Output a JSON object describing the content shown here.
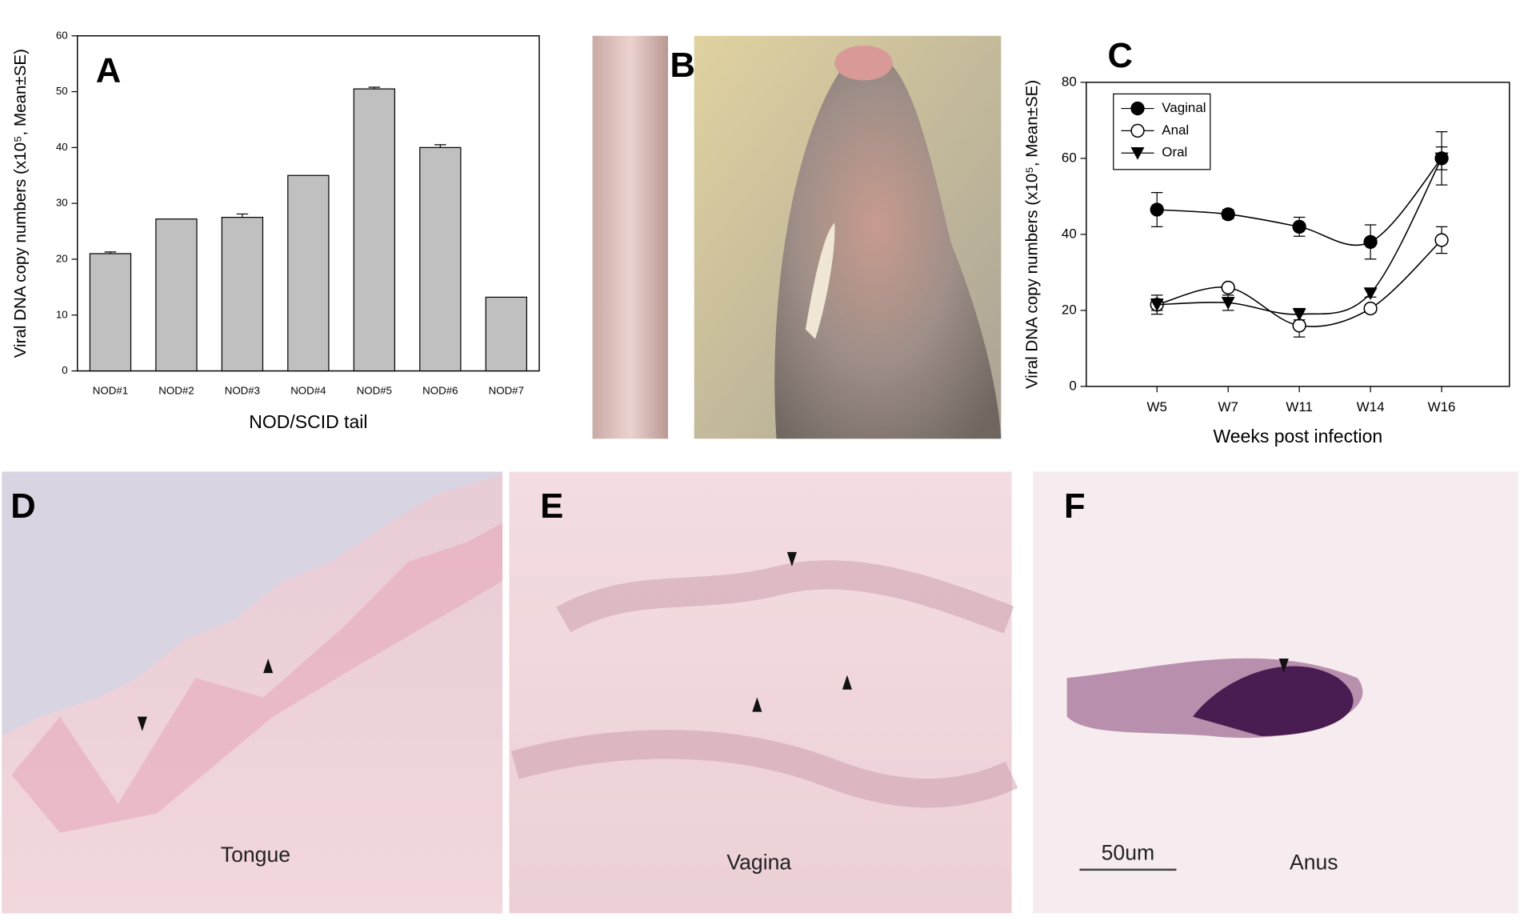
{
  "chart_data": [
    {
      "type": "bar",
      "panel": "A",
      "y_label": "Viral DNA copy numbers (x10⁵, Mean±SE)",
      "x_label": "NOD/SCID tail",
      "categories": [
        "NOD#1",
        "NOD#2",
        "NOD#3",
        "NOD#4",
        "NOD#5",
        "NOD#6",
        "NOD#7"
      ],
      "values": [
        21,
        27.2,
        27.5,
        35,
        50.5,
        40,
        13.2
      ],
      "errors": [
        0.3,
        0,
        0.6,
        0,
        0.3,
        0.5,
        0
      ],
      "color": "#c0c0c0",
      "ylim": [
        0,
        60
      ],
      "yticks": [
        0,
        10,
        20,
        30,
        40,
        50,
        60
      ],
      "grid": false
    },
    {
      "type": "line",
      "panel": "C",
      "y_label": "Viral DNA copy numbers (x10⁵, Mean±SE)",
      "x_label": "Weeks post infection",
      "categories": [
        "W5",
        "W7",
        "W11",
        "W14",
        "W16"
      ],
      "series": [
        {
          "name": "Vaginal",
          "color": "#000000",
          "marker": "filled-circle",
          "values": [
            46.5,
            45.3,
            42,
            38,
            60
          ],
          "errors": [
            4.5,
            1.2,
            2.5,
            4.5,
            7
          ]
        },
        {
          "name": "Anal",
          "color": "#000000",
          "marker": "open-circle",
          "values": [
            21.5,
            26,
            16,
            20.5,
            38.5
          ],
          "errors": [
            1.5,
            0.5,
            3,
            1,
            3.5
          ]
        },
        {
          "name": "Oral",
          "color": "#000000",
          "marker": "triangle-down",
          "values": [
            21.5,
            22,
            19,
            24.5,
            60
          ],
          "errors": [
            2.5,
            2,
            1.5,
            1,
            3
          ]
        }
      ],
      "ylim": [
        0,
        80
      ],
      "yticks": [
        0,
        20,
        40,
        60,
        80
      ],
      "legend": "upper left",
      "grid": false
    }
  ],
  "panels": {
    "b": {
      "label": "B"
    },
    "d": {
      "label": "D",
      "caption": "Tongue"
    },
    "e": {
      "label": "E",
      "caption": "Vagina"
    },
    "f": {
      "label": "F",
      "caption": "Anus",
      "scale_bar": "50um"
    }
  }
}
